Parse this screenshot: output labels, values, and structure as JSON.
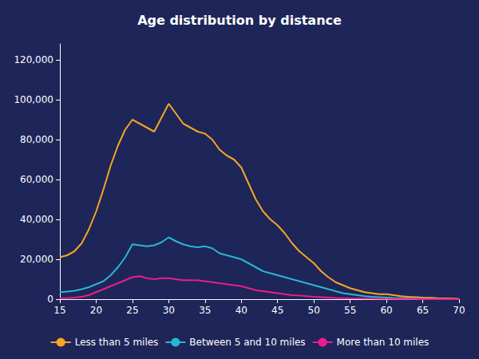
{
  "chart_data": {
    "type": "line",
    "title": "Age distribution by distance",
    "x": [
      15,
      16,
      17,
      18,
      19,
      20,
      21,
      22,
      23,
      24,
      25,
      26,
      27,
      28,
      29,
      30,
      31,
      32,
      33,
      34,
      35,
      36,
      37,
      38,
      39,
      40,
      41,
      42,
      43,
      44,
      45,
      46,
      47,
      48,
      49,
      50,
      51,
      52,
      53,
      54,
      55,
      56,
      57,
      58,
      59,
      60,
      61,
      62,
      63,
      64,
      65,
      66,
      67,
      68,
      69,
      70
    ],
    "series": [
      {
        "name": "Less than 5 miles",
        "color": "#f5a623",
        "values": [
          21000,
          22000,
          24000,
          28000,
          35000,
          44000,
          55000,
          67000,
          77000,
          85000,
          90000,
          88000,
          86000,
          84000,
          91000,
          98000,
          93000,
          88000,
          86000,
          84000,
          83000,
          80000,
          75000,
          72000,
          70000,
          66000,
          58000,
          50000,
          44000,
          40000,
          37000,
          33000,
          28000,
          24000,
          21000,
          18000,
          14000,
          11000,
          8500,
          7000,
          5500,
          4500,
          3500,
          3000,
          2500,
          2500,
          2000,
          1500,
          1200,
          1000,
          800,
          700,
          500,
          400,
          300,
          200
        ]
      },
      {
        "name": "Between 5 and 10 miles",
        "color": "#29b6d4",
        "values": [
          3500,
          3800,
          4200,
          5000,
          6000,
          7500,
          9000,
          12000,
          16000,
          21000,
          27500,
          27000,
          26500,
          27000,
          28500,
          31000,
          29000,
          27500,
          26500,
          26000,
          26500,
          25500,
          23000,
          22000,
          21000,
          20000,
          18000,
          16000,
          14000,
          13000,
          12000,
          11000,
          10000,
          9000,
          8000,
          7000,
          6000,
          5000,
          4000,
          3000,
          2500,
          2000,
          1500,
          1200,
          1000,
          800,
          600,
          500,
          400,
          300,
          200,
          150,
          100,
          80,
          60,
          50
        ]
      },
      {
        "name": "More than 10 miles",
        "color": "#e91e8c",
        "values": [
          500,
          600,
          800,
          1200,
          2000,
          3500,
          5000,
          6500,
          8000,
          9500,
          11000,
          11500,
          10500,
          10000,
          10500,
          10500,
          10000,
          9500,
          9500,
          9500,
          9000,
          8500,
          8000,
          7500,
          7000,
          6500,
          5500,
          4500,
          4000,
          3500,
          3000,
          2500,
          2000,
          1800,
          1500,
          1200,
          1000,
          800,
          600,
          500,
          400,
          350,
          300,
          250,
          200,
          150,
          120,
          100,
          80,
          60,
          50,
          40,
          30,
          20,
          15,
          10
        ]
      }
    ],
    "xlim": [
      15,
      70
    ],
    "xticks": [
      15,
      20,
      25,
      30,
      35,
      40,
      45,
      50,
      55,
      60,
      65,
      70
    ],
    "ylim": [
      0,
      128000
    ],
    "yticks": [
      0,
      {
        "value": 20000,
        "label": "20,000"
      },
      {
        "value": 40000,
        "label": "40,000"
      },
      {
        "value": 60000,
        "label": "60,000"
      },
      {
        "value": 80000,
        "label": "80,000"
      },
      {
        "value": 100000,
        "label": "100,000"
      },
      {
        "value": 120000,
        "label": "120,000"
      }
    ],
    "grid": false,
    "legend": "bottom"
  }
}
